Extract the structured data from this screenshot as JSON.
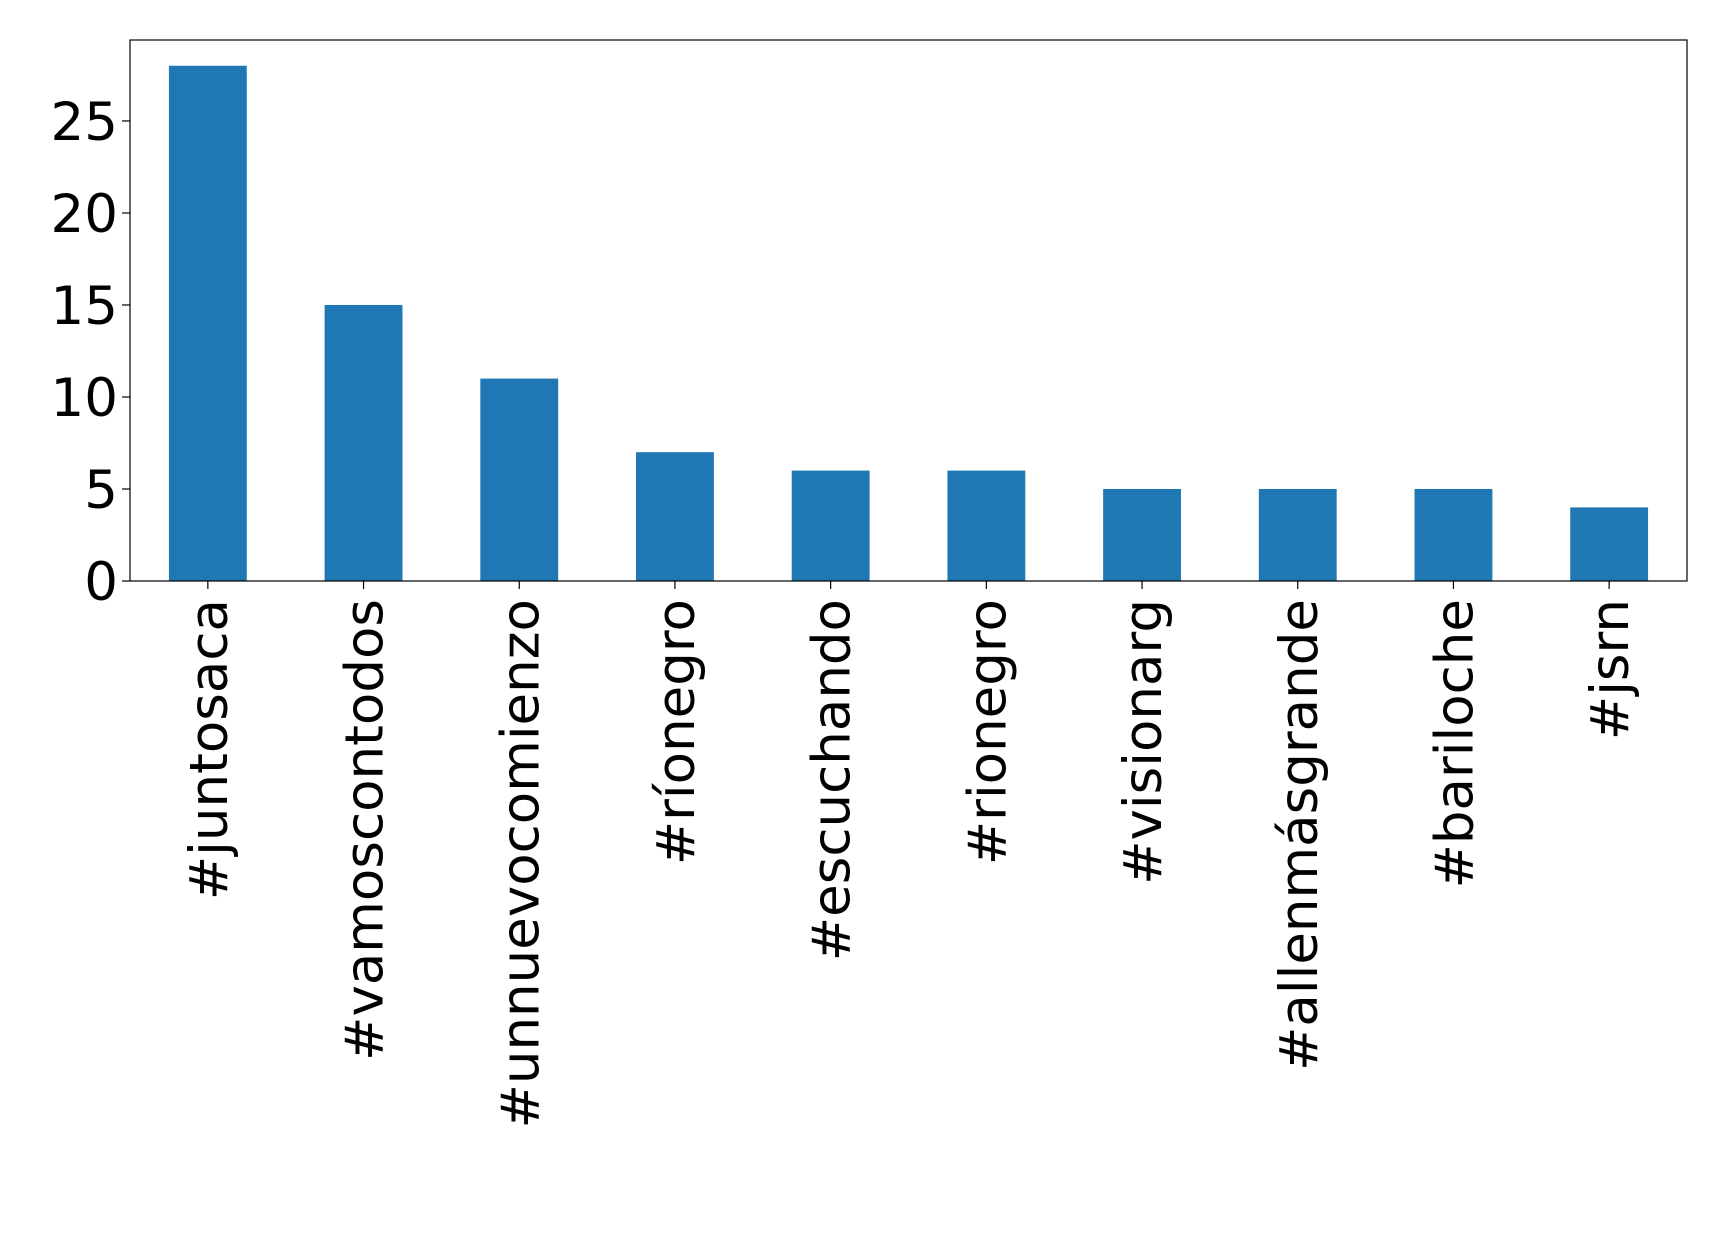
{
  "chart_data": {
    "type": "bar",
    "categories": [
      "#juntosaca",
      "#vamoscontodos",
      "#unnuevocomienzo",
      "#ríonegro",
      "#escuchando",
      "#rionegro",
      "#visionarg",
      "#allenmásgrande",
      "#bariloche",
      "#jsrn"
    ],
    "values": [
      28,
      15,
      11,
      7,
      6,
      6,
      5,
      5,
      5,
      4
    ],
    "color": "#1f77b4",
    "ylim": [
      0,
      29.4
    ],
    "yticks": [
      0,
      5,
      10,
      15,
      20,
      25
    ],
    "grid": false
  }
}
